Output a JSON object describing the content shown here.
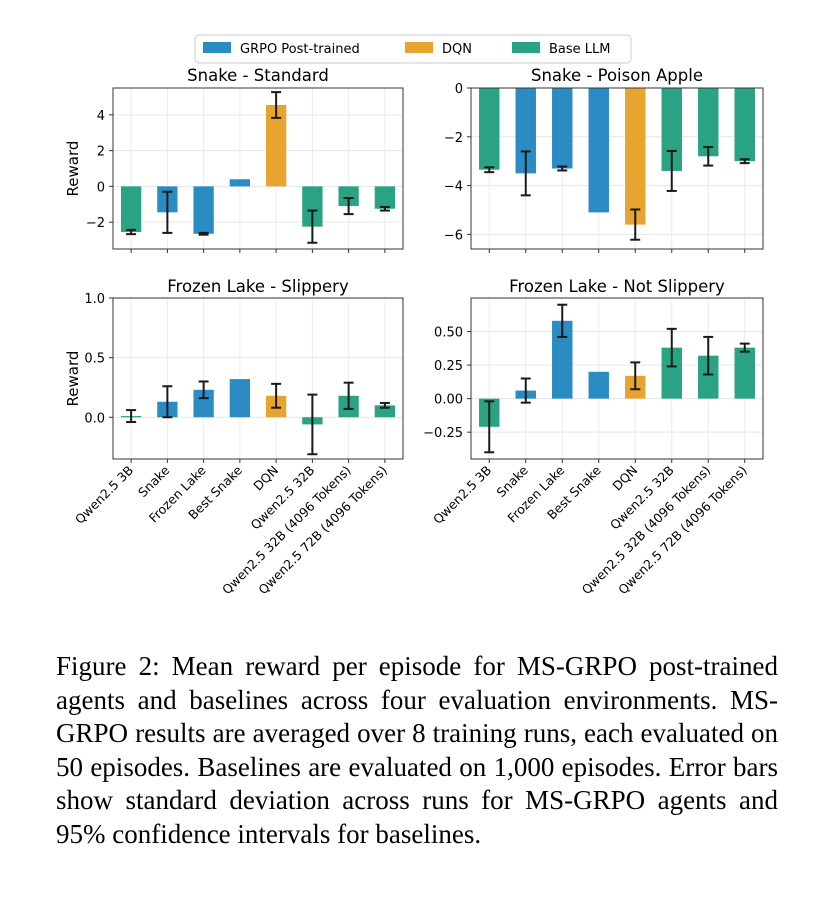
{
  "legend": {
    "items": [
      {
        "label": "GRPO Post-trained",
        "color": "#2b8cc4"
      },
      {
        "label": "DQN",
        "color": "#e8a431"
      },
      {
        "label": "Base LLM",
        "color": "#2aa384"
      }
    ]
  },
  "chart_data": [
    {
      "type": "bar",
      "title": "Snake - Standard",
      "ylabel": "Reward",
      "categories": [
        "Qwen2.5 3B",
        "Snake",
        "Frozen Lake",
        "Best Snake",
        "DQN",
        "Qwen2.5 32B",
        "Qwen2.5 32B (4096 Tokens)",
        "Qwen2.5 72B (4096 Tokens)"
      ],
      "groups": [
        "Base LLM",
        "GRPO Post-trained",
        "GRPO Post-trained",
        "GRPO Post-trained",
        "DQN",
        "Base LLM",
        "Base LLM",
        "Base LLM"
      ],
      "values": [
        -2.55,
        -1.45,
        -2.65,
        0.4,
        4.55,
        -2.25,
        -1.1,
        -1.25
      ],
      "errors": [
        0.12,
        1.15,
        0.05,
        null,
        0.72,
        0.9,
        0.45,
        0.1
      ],
      "ylim": [
        -3.5,
        5.5
      ],
      "yticks": [
        -2,
        0,
        2,
        4
      ],
      "ytick_labels": [
        "−2",
        "0",
        "2",
        "4"
      ],
      "grid": true
    },
    {
      "type": "bar",
      "title": "Snake - Poison Apple",
      "ylabel": "",
      "categories": [
        "Qwen2.5 3B",
        "Snake",
        "Frozen Lake",
        "Best Snake",
        "DQN",
        "Qwen2.5 32B",
        "Qwen2.5 32B (4096 Tokens)",
        "Qwen2.5 72B (4096 Tokens)"
      ],
      "groups": [
        "Base LLM",
        "GRPO Post-trained",
        "GRPO Post-trained",
        "GRPO Post-trained",
        "DQN",
        "Base LLM",
        "Base LLM",
        "Base LLM"
      ],
      "values": [
        -3.35,
        -3.5,
        -3.3,
        -5.1,
        -5.6,
        -3.4,
        -2.8,
        -3.0
      ],
      "errors": [
        0.1,
        0.9,
        0.08,
        null,
        0.62,
        0.82,
        0.38,
        0.08
      ],
      "ylim": [
        -6.6,
        0
      ],
      "yticks": [
        0,
        -2,
        -4,
        -6
      ],
      "ytick_labels": [
        "0",
        "−2",
        "−4",
        "−6"
      ],
      "grid": true
    },
    {
      "type": "bar",
      "title": "Frozen Lake - Slippery",
      "ylabel": "Reward",
      "categories": [
        "Qwen2.5 3B",
        "Snake",
        "Frozen Lake",
        "Best Snake",
        "DQN",
        "Qwen2.5 32B",
        "Qwen2.5 32B (4096 Tokens)",
        "Qwen2.5 72B (4096 Tokens)"
      ],
      "groups": [
        "Base LLM",
        "GRPO Post-trained",
        "GRPO Post-trained",
        "GRPO Post-trained",
        "DQN",
        "Base LLM",
        "Base LLM",
        "Base LLM"
      ],
      "values": [
        0.01,
        0.13,
        0.23,
        0.32,
        0.18,
        -0.06,
        0.18,
        0.1
      ],
      "errors": [
        0.05,
        0.13,
        0.07,
        null,
        0.1,
        0.25,
        0.11,
        0.02
      ],
      "ylim": [
        -0.35,
        1.0
      ],
      "yticks": [
        0.0,
        0.5,
        1.0
      ],
      "ytick_labels": [
        "0.0",
        "0.5",
        "1.0"
      ],
      "grid": true
    },
    {
      "type": "bar",
      "title": "Frozen Lake - Not Slippery",
      "ylabel": "",
      "categories": [
        "Qwen2.5 3B",
        "Snake",
        "Frozen Lake",
        "Best Snake",
        "DQN",
        "Qwen2.5 32B",
        "Qwen2.5 32B (4096 Tokens)",
        "Qwen2.5 72B (4096 Tokens)"
      ],
      "groups": [
        "Base LLM",
        "GRPO Post-trained",
        "GRPO Post-trained",
        "GRPO Post-trained",
        "DQN",
        "Base LLM",
        "Base LLM",
        "Base LLM"
      ],
      "values": [
        -0.21,
        0.06,
        0.58,
        0.2,
        0.17,
        0.38,
        0.32,
        0.38
      ],
      "errors": [
        0.19,
        0.09,
        0.12,
        null,
        0.1,
        0.14,
        0.14,
        0.03
      ],
      "ylim": [
        -0.45,
        0.75
      ],
      "yticks": [
        -0.25,
        0.0,
        0.25,
        0.5
      ],
      "ytick_labels": [
        "−0.25",
        "0.00",
        "0.25",
        "0.50"
      ],
      "grid": true
    }
  ],
  "caption": "Figure 2: Mean reward per episode for MS-GRPO post-trained agents and baselines across four evaluation environments. MS-GRPO results are averaged over 8 training runs, each evaluated on 50 episodes. Baselines are evaluated on 1,000 episodes. Error bars show standard deviation across runs for MS-GRPO agents and 95% confidence intervals for baselines."
}
